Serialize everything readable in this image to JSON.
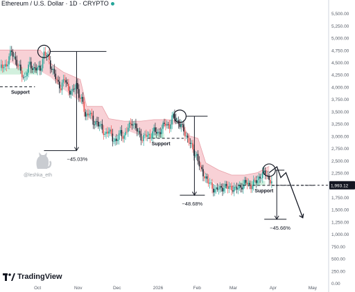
{
  "header": {
    "title": "Ethereum / U.S. Dollar · 1D · CRYPTO"
  },
  "watermark": {
    "handle": "@leshka_eth",
    "icon": "cat-icon"
  },
  "branding": {
    "name": "TradingView",
    "icon": "tradingview-logo-icon"
  },
  "colors": {
    "up": "#26a69a",
    "down": "#ef5350",
    "candle_dark": "#1e222d",
    "cloud": "#f7c9cf",
    "cloud_edge": "#e8a0a8",
    "support_fill": "#c7ecd6",
    "price_tag": "#131722",
    "axis_text": "#555b66"
  },
  "chart_data": {
    "type": "candlestick",
    "y_ticks": [
      "5,500.00",
      "5,250.00",
      "5,000.00",
      "4,750.00",
      "4,500.00",
      "4,250.00",
      "4,000.00",
      "3,750.00",
      "3,500.00",
      "3,250.00",
      "3,000.00",
      "2,750.00",
      "2,500.00",
      "2,250.00",
      "2,000.00",
      "1,750.00",
      "1,500.00",
      "1,250.00",
      "1,000.00",
      "750.00",
      "500.00",
      "250.00",
      "0.00"
    ],
    "y_tick_values": [
      5500,
      5250,
      5000,
      4750,
      4500,
      4250,
      4000,
      3750,
      3500,
      3250,
      3000,
      2750,
      2500,
      2250,
      2000,
      1750,
      1500,
      1250,
      1000,
      750,
      500,
      250,
      0
    ],
    "ylim": [
      0,
      5600
    ],
    "x_tick_labels": [
      "Oct",
      "Nov",
      "Dec",
      "2026",
      "Feb",
      "Mar",
      "Apr",
      "May"
    ],
    "x_tick_days": [
      0,
      31,
      61,
      92,
      123,
      151,
      182,
      212
    ],
    "x_range_days": [
      -29,
      225
    ],
    "current_price": "1,993.12",
    "current_price_value": 1993,
    "price_path": [
      [
        -29,
        4380
      ],
      [
        -24,
        4450
      ],
      [
        -20,
        4720
      ],
      [
        -17,
        4550
      ],
      [
        -13,
        4300
      ],
      [
        -10,
        4180
      ],
      [
        -6,
        4450
      ],
      [
        -3,
        4380
      ],
      [
        2,
        4350
      ],
      [
        5,
        4680
      ],
      [
        8,
        4600
      ],
      [
        10,
        4450
      ],
      [
        13,
        4250
      ],
      [
        15,
        4100
      ],
      [
        18,
        4000
      ],
      [
        21,
        4150
      ],
      [
        24,
        3950
      ],
      [
        27,
        3880
      ],
      [
        30,
        4050
      ],
      [
        32,
        3850
      ],
      [
        35,
        3650
      ],
      [
        37,
        3400
      ],
      [
        40,
        3500
      ],
      [
        43,
        3250
      ],
      [
        46,
        3300
      ],
      [
        49,
        3150
      ],
      [
        52,
        3050
      ],
      [
        55,
        3100
      ],
      [
        58,
        2950
      ],
      [
        61,
        2900
      ],
      [
        64,
        3050
      ],
      [
        67,
        3000
      ],
      [
        70,
        3150
      ],
      [
        73,
        3300
      ],
      [
        75,
        3200
      ],
      [
        78,
        3050
      ],
      [
        81,
        2950
      ],
      [
        84,
        3000
      ],
      [
        87,
        3000
      ],
      [
        90,
        3100
      ],
      [
        93,
        3050
      ],
      [
        96,
        3150
      ],
      [
        99,
        3250
      ],
      [
        102,
        3200
      ],
      [
        104,
        3350
      ],
      [
        106,
        3400
      ],
      [
        108,
        3300
      ],
      [
        111,
        3200
      ],
      [
        114,
        3050
      ],
      [
        117,
        2900
      ],
      [
        120,
        2700
      ],
      [
        123,
        2600
      ],
      [
        126,
        2300
      ],
      [
        129,
        2200
      ],
      [
        132,
        2050
      ],
      [
        135,
        1950
      ],
      [
        138,
        1900
      ],
      [
        141,
        1920
      ],
      [
        144,
        1970
      ],
      [
        147,
        1940
      ],
      [
        150,
        1950
      ],
      [
        153,
        1900
      ],
      [
        156,
        1960
      ],
      [
        159,
        2000
      ],
      [
        162,
        2050
      ],
      [
        165,
        1980
      ],
      [
        168,
        2050
      ],
      [
        171,
        2150
      ],
      [
        174,
        2200
      ],
      [
        177,
        2250
      ],
      [
        179,
        2100
      ],
      [
        181,
        2050
      ]
    ],
    "cloud_upper": [
      [
        -29,
        4750
      ],
      [
        2,
        4750
      ],
      [
        9,
        4500
      ],
      [
        20,
        4300
      ],
      [
        33,
        4150
      ],
      [
        38,
        3600
      ],
      [
        50,
        3600
      ],
      [
        55,
        3350
      ],
      [
        67,
        3300
      ],
      [
        75,
        3300
      ],
      [
        80,
        3300
      ],
      [
        90,
        3330
      ],
      [
        100,
        3330
      ],
      [
        110,
        3300
      ],
      [
        117,
        3000
      ],
      [
        124,
        2950
      ],
      [
        130,
        2450
      ],
      [
        140,
        2300
      ],
      [
        150,
        2200
      ],
      [
        160,
        2200
      ],
      [
        170,
        2250
      ],
      [
        179,
        2380
      ]
    ],
    "cloud_lower": [
      [
        -29,
        4380
      ],
      [
        -20,
        4500
      ],
      [
        -10,
        4250
      ],
      [
        0,
        4350
      ],
      [
        10,
        4200
      ],
      [
        20,
        3950
      ],
      [
        33,
        3700
      ],
      [
        40,
        3350
      ],
      [
        50,
        3150
      ],
      [
        60,
        2980
      ],
      [
        70,
        3100
      ],
      [
        80,
        3000
      ],
      [
        90,
        3050
      ],
      [
        100,
        3200
      ],
      [
        108,
        3250
      ],
      [
        117,
        2950
      ],
      [
        124,
        2450
      ],
      [
        130,
        2200
      ],
      [
        140,
        1950
      ],
      [
        150,
        1950
      ],
      [
        160,
        2000
      ],
      [
        170,
        2150
      ],
      [
        179,
        2280
      ]
    ],
    "support_levels": [
      {
        "label": "Support",
        "value": 4000,
        "from_day": -29,
        "to_day": -2
      },
      {
        "label": "Support",
        "value": 2950,
        "from_day": 85,
        "to_day": 113
      },
      {
        "label": "Support",
        "value": 1990,
        "from_day": 155,
        "to_day": 214
      }
    ],
    "peaks": [
      {
        "day": 5,
        "value": 4720,
        "bottom_day": 30,
        "bottom_value": 2700,
        "change_label": "−45.03%"
      },
      {
        "day": 110,
        "value": 3400,
        "bottom_day": 133,
        "bottom_value": 1790,
        "change_label": "−48.68%"
      },
      {
        "day": 179,
        "value": 2300,
        "bottom_day": 180,
        "bottom_value": 1300,
        "change_label": "−45.66%"
      }
    ],
    "projection": [
      [
        179,
        2250
      ],
      [
        185,
        2370
      ],
      [
        188,
        2150
      ],
      [
        192,
        2250
      ],
      [
        205,
        1330
      ]
    ]
  }
}
